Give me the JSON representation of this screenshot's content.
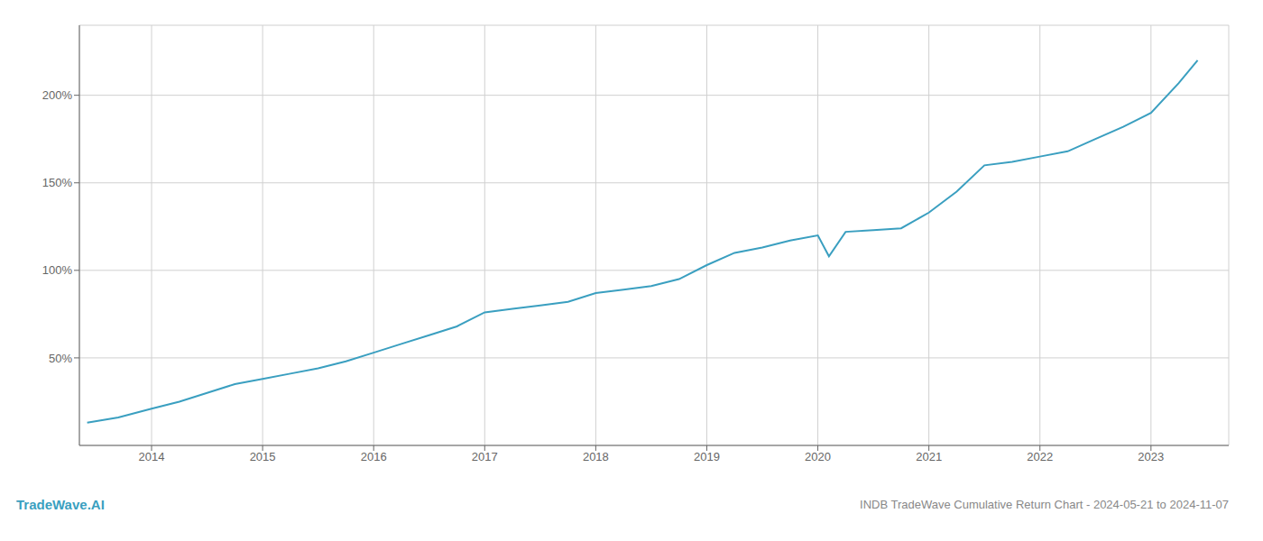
{
  "chart_data": {
    "type": "line",
    "title": "INDB TradeWave Cumulative Return Chart - 2024-05-21 to 2024-11-07",
    "annotations": [
      "TradeWave.AI"
    ],
    "color": "#3a9fc0",
    "grid": true,
    "x": [
      2013.42,
      2013.7,
      2014.0,
      2014.25,
      2014.5,
      2014.75,
      2015.0,
      2015.25,
      2015.5,
      2015.75,
      2016.0,
      2016.25,
      2016.5,
      2016.75,
      2017.0,
      2017.25,
      2017.5,
      2017.75,
      2018.0,
      2018.25,
      2018.5,
      2018.75,
      2019.0,
      2019.25,
      2019.5,
      2019.75,
      2020.0,
      2020.1,
      2020.25,
      2020.5,
      2020.75,
      2021.0,
      2021.25,
      2021.5,
      2021.75,
      2022.0,
      2022.25,
      2022.5,
      2022.75,
      2023.0,
      2023.25,
      2023.42
    ],
    "values": [
      13,
      16,
      21,
      25,
      30,
      35,
      38,
      41,
      44,
      48,
      53,
      58,
      63,
      68,
      76,
      78,
      80,
      82,
      87,
      89,
      91,
      95,
      103,
      110,
      113,
      117,
      120,
      108,
      122,
      123,
      124,
      133,
      145,
      160,
      162,
      165,
      168,
      175,
      182,
      190,
      207,
      220
    ],
    "xlim": [
      2013.35,
      2023.7
    ],
    "xticks": [
      2014,
      2015,
      2016,
      2017,
      2018,
      2019,
      2020,
      2021,
      2022,
      2023
    ],
    "ylim": [
      0,
      240
    ],
    "yticks": [
      {
        "value": 50,
        "label": "50%"
      },
      {
        "value": 100,
        "label": "100%"
      },
      {
        "value": 150,
        "label": "150%"
      },
      {
        "value": 200,
        "label": "200%"
      }
    ]
  }
}
